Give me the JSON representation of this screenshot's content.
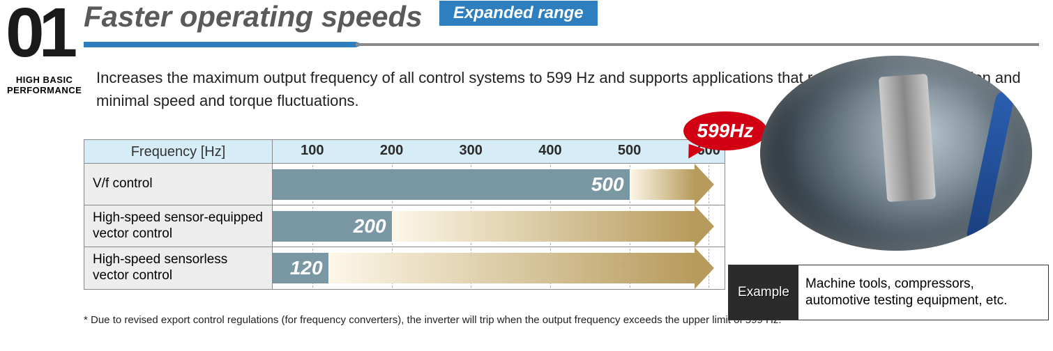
{
  "section": {
    "number": "01",
    "sub1": "HIGH BASIC",
    "sub2": "PERFORMANCE"
  },
  "header": {
    "title": "Faster operating speeds",
    "badge": "Expanded range",
    "badge_bg": "#2d7fbf"
  },
  "description": "Increases the maximum output frequency of all control systems to 599 Hz and supports applications that require high-speed rotation and minimal speed and torque fluctuations.",
  "chart": {
    "axis_label": "Frequency [Hz]",
    "header_bg": "#d6edf7",
    "row_label_bg": "#ededed",
    "bar_solid_color": "#7a98a3",
    "bar_color_start": "#fdf7e8",
    "bar_color_end": "#b79b5d",
    "arrow_color": "#b79b5d",
    "grid_color": "#b0b0b0",
    "axis_min": 50,
    "axis_max": 620,
    "ticks": [
      100,
      200,
      300,
      400,
      500,
      600
    ],
    "arrow_end": 599,
    "rows": [
      {
        "label": "V/f control",
        "old_value": 500
      },
      {
        "label": "High-speed sensor-equipped vector control",
        "old_value": 200
      },
      {
        "label": "High-speed sensorless vector control",
        "old_value": 120
      }
    ]
  },
  "callout": {
    "text": "599Hz",
    "bg": "#d20013"
  },
  "footnote": "* Due to revised export control regulations (for frequency converters), the inverter will trip when the output frequency exceeds the upper limit of 599 Hz.",
  "example": {
    "label": "Example",
    "text": "Machine tools, compressors, automotive testing equipment, etc."
  }
}
